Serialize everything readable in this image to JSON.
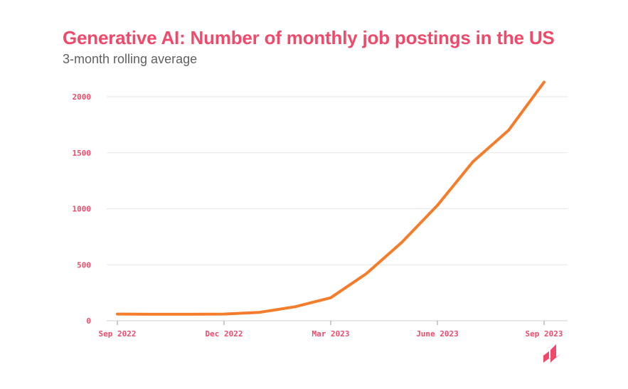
{
  "chart_data": {
    "type": "line",
    "title": "Generative AI: Number of monthly job postings in the US",
    "subtitle": "3-month rolling average",
    "xlabel": "",
    "ylabel": "",
    "x": [
      "Sep 2022",
      "Oct 2022",
      "Nov 2022",
      "Dec 2022",
      "Jan 2023",
      "Feb 2023",
      "Mar 2023",
      "Apr 2023",
      "May 2023",
      "Jun 2023",
      "Jul 2023",
      "Aug 2023",
      "Sep 2023"
    ],
    "x_tick_labels": [
      "Sep 2022",
      "Dec 2022",
      "Mar 2023",
      "June 2023",
      "Sep 2023"
    ],
    "y_tick_labels": [
      "0",
      "500",
      "1000",
      "1500",
      "2000"
    ],
    "ylim": [
      0,
      2200
    ],
    "grid": true,
    "series": [
      {
        "values": [
          60,
          58,
          58,
          60,
          75,
          125,
          205,
          420,
          700,
          1030,
          1420,
          1700,
          2130
        ]
      }
    ],
    "colors": {
      "line": "#f57c2a",
      "accent": "#ef4a6a",
      "grid": "#e6e6e6"
    }
  },
  "brand": {
    "logo_icon": "brand-logo-icon"
  }
}
